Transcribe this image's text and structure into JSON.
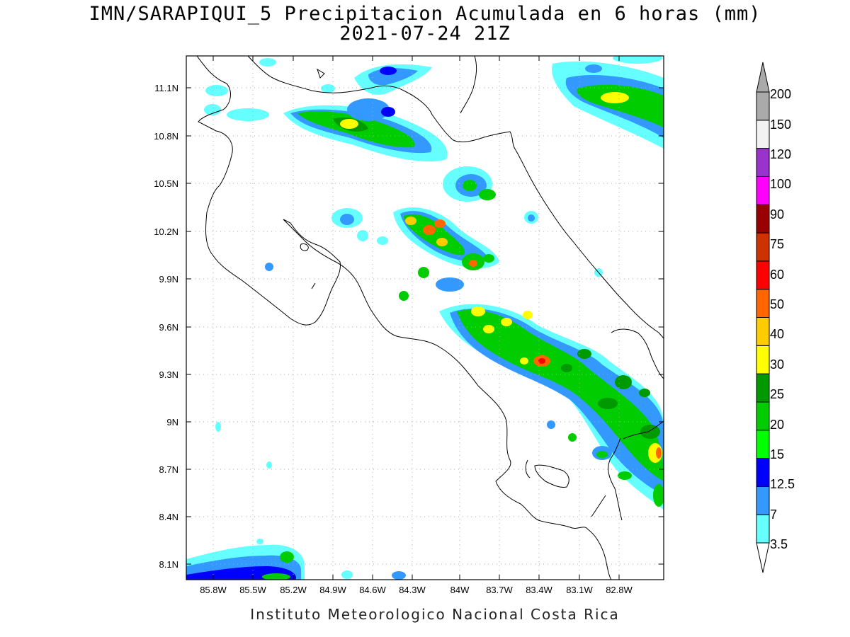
{
  "title": {
    "line1": "IMN/SARAPIQUI_5 Precipitacion Acumulada en 6 horas (mm)",
    "line2": "2021-07-24 21Z"
  },
  "footer": "Instituto Meteorologico Nacional Costa Rica",
  "map": {
    "lon_range": [
      -86.0,
      -82.6
    ],
    "lat_range": [
      8.0,
      11.3
    ],
    "x_ticks": [
      "85.8W",
      "85.5W",
      "85.2W",
      "84.9W",
      "84.6W",
      "84.3W",
      "84W",
      "83.7W",
      "83.4W",
      "83.1W",
      "82.8W"
    ],
    "x_tick_values": [
      -85.8,
      -85.5,
      -85.2,
      -84.9,
      -84.6,
      -84.3,
      -84.0,
      -83.7,
      -83.4,
      -83.1,
      -82.8
    ],
    "y_ticks": [
      "8.1N",
      "8.4N",
      "8.7N",
      "9N",
      "9.3N",
      "9.6N",
      "9.9N",
      "10.2N",
      "10.5N",
      "10.8N",
      "11.1N"
    ],
    "y_tick_values": [
      8.1,
      8.4,
      8.7,
      9.0,
      9.3,
      9.6,
      9.9,
      10.2,
      10.5,
      10.8,
      11.1
    ],
    "grid": "dotted"
  },
  "colorbar": {
    "levels": [
      "3.5",
      "7",
      "12.5",
      "15",
      "20",
      "25",
      "30",
      "40",
      "50",
      "60",
      "75",
      "90",
      "100",
      "120",
      "150",
      "200"
    ],
    "colors": [
      "#66ffff",
      "#3399ff",
      "#0000ff",
      "#00ff00",
      "#00cc00",
      "#009900",
      "#ffff00",
      "#ffcc00",
      "#ff6600",
      "#ff0000",
      "#cc3300",
      "#990000",
      "#ff00ff",
      "#9933cc",
      "#f2f2f2",
      "#aaaaaa"
    ]
  }
}
